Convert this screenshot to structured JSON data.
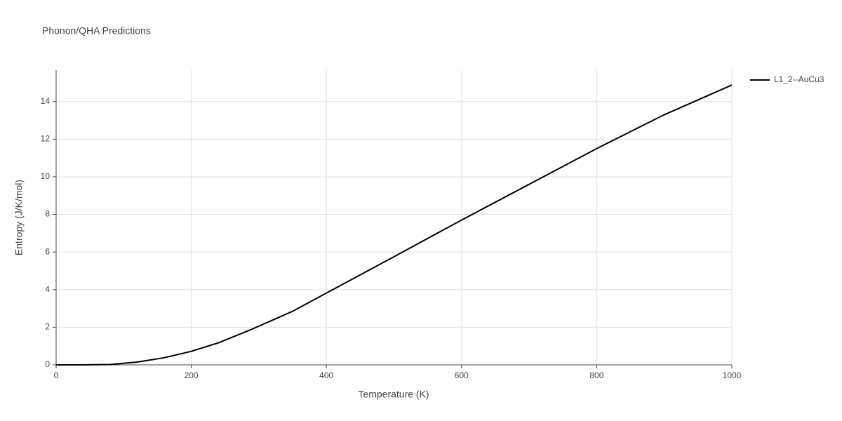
{
  "chart_data": {
    "type": "line",
    "title": "Phonon/QHA Predictions",
    "x_label": "Temperature (K)",
    "y_label": "Entropy (J/K/mol)",
    "x": [
      0,
      40,
      80,
      120,
      160,
      200,
      240,
      290,
      350,
      400,
      500,
      600,
      700,
      800,
      900,
      1000
    ],
    "series": [
      {
        "name": "L1_2--AuCu3",
        "color": "#000000",
        "values": [
          0,
          0,
          0.02,
          0.15,
          0.38,
          0.72,
          1.17,
          1.9,
          2.85,
          3.82,
          5.75,
          7.7,
          9.6,
          11.5,
          13.3,
          14.88
        ]
      }
    ],
    "xlim": [
      0,
      1000
    ],
    "ylim": [
      0,
      15.67
    ],
    "xticks": [
      0,
      200,
      400,
      600,
      800,
      1000
    ],
    "yticks": [
      0,
      2,
      4,
      6,
      8,
      10,
      12,
      14
    ],
    "grid": true,
    "legend": "right"
  }
}
